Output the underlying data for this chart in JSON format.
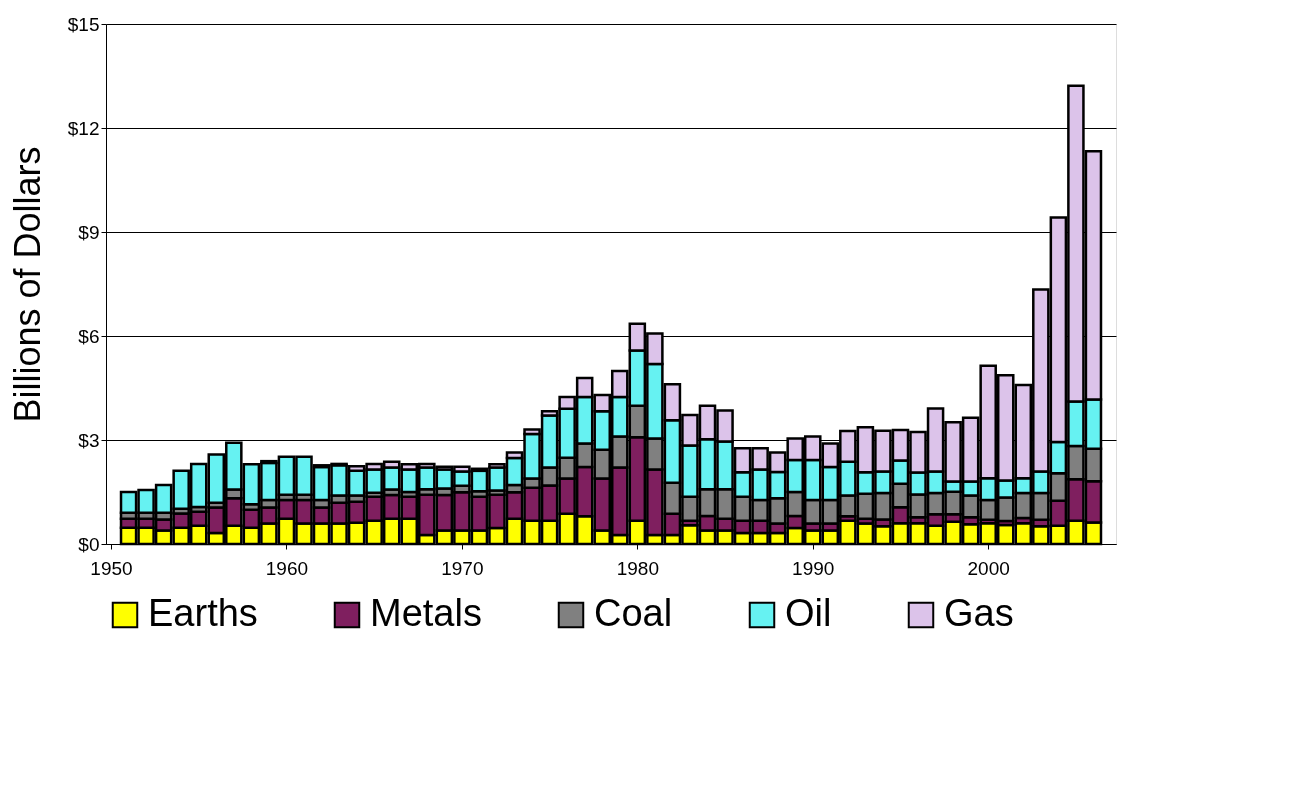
{
  "chart_data": {
    "type": "bar",
    "stacked": true,
    "ylabel": "Billions of Dollars",
    "x": [
      1951,
      1952,
      1953,
      1954,
      1955,
      1956,
      1957,
      1958,
      1959,
      1960,
      1961,
      1962,
      1963,
      1964,
      1965,
      1966,
      1967,
      1968,
      1969,
      1970,
      1971,
      1972,
      1973,
      1974,
      1975,
      1976,
      1977,
      1978,
      1979,
      1980,
      1981,
      1982,
      1983,
      1984,
      1985,
      1986,
      1987,
      1988,
      1989,
      1990,
      1991,
      1992,
      1993,
      1994,
      1995,
      1996,
      1997,
      1998,
      1999,
      2000,
      2001,
      2002,
      2003,
      2004,
      2005,
      2006
    ],
    "series": [
      {
        "name": "Earths",
        "color": "#ffff00",
        "values": [
          0.47,
          0.47,
          0.39,
          0.47,
          0.53,
          0.32,
          0.53,
          0.47,
          0.59,
          0.73,
          0.59,
          0.59,
          0.59,
          0.61,
          0.67,
          0.73,
          0.73,
          0.26,
          0.39,
          0.39,
          0.39,
          0.46,
          0.73,
          0.67,
          0.67,
          0.87,
          0.8,
          0.39,
          0.26,
          0.67,
          0.26,
          0.26,
          0.54,
          0.39,
          0.39,
          0.32,
          0.32,
          0.32,
          0.46,
          0.39,
          0.39,
          0.67,
          0.59,
          0.51,
          0.6,
          0.6,
          0.53,
          0.64,
          0.57,
          0.6,
          0.55,
          0.6,
          0.51,
          0.53,
          0.67,
          0.62
        ]
      },
      {
        "name": "Metals",
        "color": "#7f1f5f",
        "values": [
          0.26,
          0.26,
          0.32,
          0.41,
          0.4,
          0.73,
          0.79,
          0.52,
          0.46,
          0.54,
          0.68,
          0.46,
          0.6,
          0.61,
          0.69,
          0.68,
          0.63,
          1.16,
          1.02,
          1.1,
          0.97,
          0.96,
          0.76,
          0.95,
          1.02,
          1.02,
          1.42,
          1.5,
          1.95,
          2.41,
          1.89,
          0.61,
          0.13,
          0.42,
          0.34,
          0.35,
          0.35,
          0.27,
          0.35,
          0.2,
          0.2,
          0.13,
          0.14,
          0.2,
          0.46,
          0.17,
          0.33,
          0.22,
          0.2,
          0.1,
          0.11,
          0.15,
          0.19,
          0.72,
          1.2,
          1.19
        ]
      },
      {
        "name": "Coal",
        "color": "#808080",
        "values": [
          0.17,
          0.17,
          0.19,
          0.14,
          0.14,
          0.14,
          0.25,
          0.16,
          0.22,
          0.15,
          0.15,
          0.22,
          0.21,
          0.18,
          0.12,
          0.16,
          0.14,
          0.16,
          0.19,
          0.19,
          0.16,
          0.12,
          0.21,
          0.27,
          0.52,
          0.6,
          0.68,
          0.83,
          0.89,
          0.91,
          0.89,
          0.9,
          0.69,
          0.77,
          0.85,
          0.69,
          0.6,
          0.73,
          0.69,
          0.68,
          0.68,
          0.6,
          0.72,
          0.76,
          0.68,
          0.66,
          0.61,
          0.65,
          0.63,
          0.57,
          0.68,
          0.72,
          0.77,
          0.79,
          0.96,
          0.94
        ]
      },
      {
        "name": "Oil",
        "color": "#66f2f2",
        "values": [
          0.6,
          0.66,
          0.8,
          1.09,
          1.24,
          1.39,
          1.35,
          1.15,
          1.07,
          1.1,
          1.1,
          0.95,
          0.87,
          0.71,
          0.67,
          0.64,
          0.65,
          0.63,
          0.55,
          0.41,
          0.59,
          0.67,
          0.78,
          1.28,
          1.5,
          1.41,
          1.34,
          1.11,
          1.14,
          1.59,
          2.15,
          1.8,
          1.48,
          1.44,
          1.38,
          0.71,
          0.88,
          0.76,
          0.92,
          1.15,
          0.95,
          0.97,
          0.62,
          0.62,
          0.67,
          0.63,
          0.62,
          0.29,
          0.4,
          0.63,
          0.49,
          0.43,
          0.62,
          0.9,
          1.28,
          1.42
        ]
      },
      {
        "name": "Gas",
        "color": "#dcc3ea",
        "values": [
          null,
          null,
          null,
          null,
          null,
          null,
          null,
          null,
          0.05,
          null,
          null,
          0.05,
          0.04,
          0.13,
          0.16,
          0.16,
          0.15,
          0.1,
          0.08,
          0.14,
          0.06,
          0.09,
          0.16,
          0.13,
          0.12,
          0.34,
          0.55,
          0.47,
          0.75,
          0.77,
          0.88,
          1.04,
          0.88,
          0.97,
          0.89,
          0.69,
          0.61,
          0.56,
          0.62,
          0.68,
          0.68,
          0.89,
          1.3,
          1.18,
          0.88,
          1.17,
          1.82,
          1.71,
          1.84,
          3.24,
          3.04,
          2.69,
          5.25,
          6.48,
          9.11,
          7.16
        ]
      }
    ],
    "xlim": [
      1950,
      2007
    ],
    "xticks": [
      1950,
      1960,
      1970,
      1980,
      1990,
      2000
    ],
    "ylim": [
      0,
      15
    ],
    "yticks": [
      {
        "value": 0,
        "label": "$0"
      },
      {
        "value": 3,
        "label": "$3"
      },
      {
        "value": 6,
        "label": "$6"
      },
      {
        "value": 9,
        "label": "$9"
      },
      {
        "value": 12,
        "label": "$12"
      },
      {
        "value": 15,
        "label": "$15"
      }
    ],
    "grid": "y",
    "legend": "bottom"
  }
}
